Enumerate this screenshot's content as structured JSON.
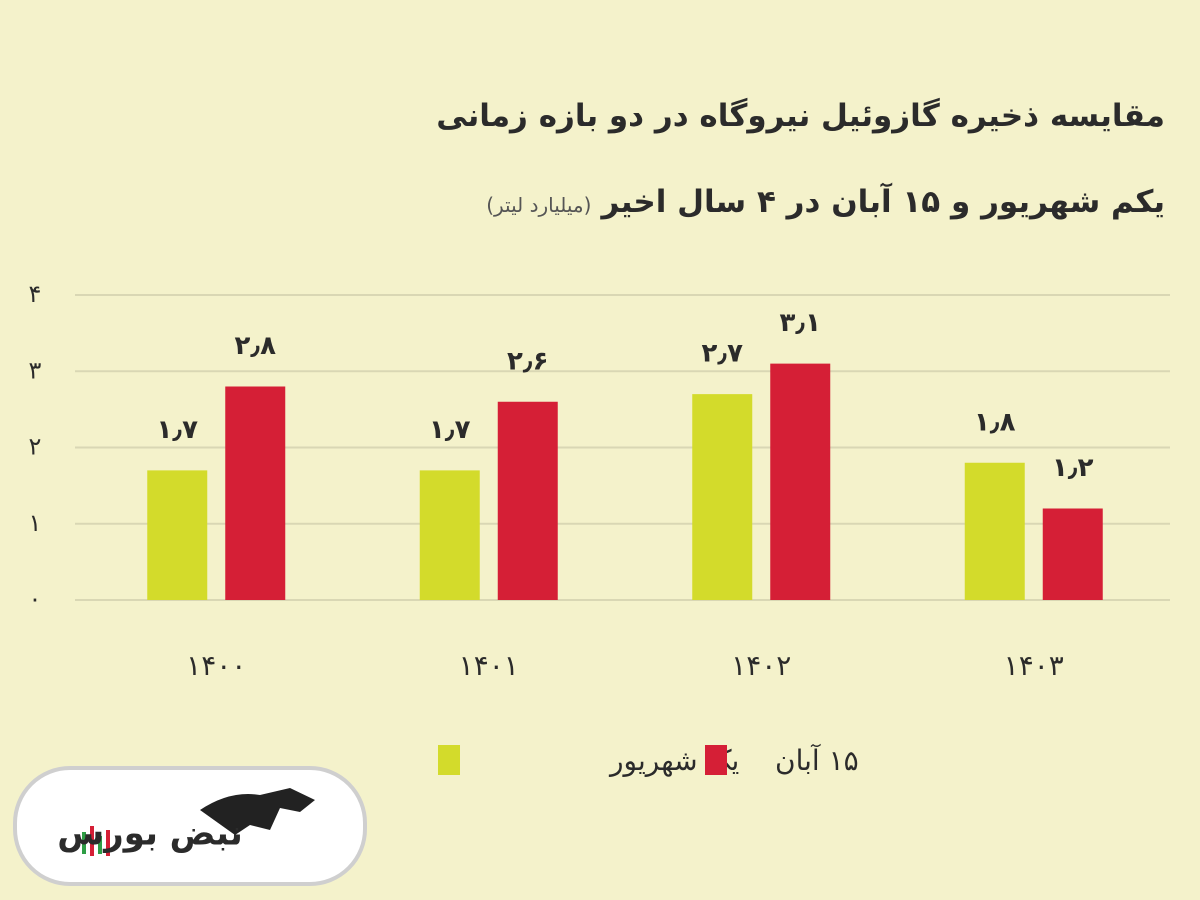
{
  "chart_data": {
    "type": "bar",
    "title": "مقایسه ذخیره گازوئیل نیروگاه در دو بازه زمانی",
    "subtitle": "یکم شهریور و ۱۵ آبان در ۴ سال اخیر",
    "unit": "(میلیارد لیتر)",
    "categories": [
      "۱۴۰۰",
      "۱۴۰۱",
      "۱۴۰۲",
      "۱۴۰۳"
    ],
    "series": [
      {
        "name": "یک شهریور",
        "color": "#d3db2b",
        "values": [
          1.7,
          1.7,
          2.7,
          1.8
        ],
        "value_labels": [
          "۱٫۷",
          "۱٫۷",
          "۲٫۷",
          "۱٫۸"
        ]
      },
      {
        "name": "۱۵ آبان",
        "color": "#d51f36",
        "values": [
          2.8,
          2.6,
          3.1,
          1.2
        ],
        "value_labels": [
          "۲٫۸",
          "۲٫۶",
          "۳٫۱",
          "۱٫۲"
        ]
      }
    ],
    "ylim": [
      0,
      4
    ],
    "yticks": [
      {
        "value": 0,
        "label": "۰"
      },
      {
        "value": 1,
        "label": "۱"
      },
      {
        "value": 2,
        "label": "۲"
      },
      {
        "value": 3,
        "label": "۳"
      },
      {
        "value": 4,
        "label": "۴"
      }
    ],
    "grid": true
  },
  "logo": "نبض بورس"
}
